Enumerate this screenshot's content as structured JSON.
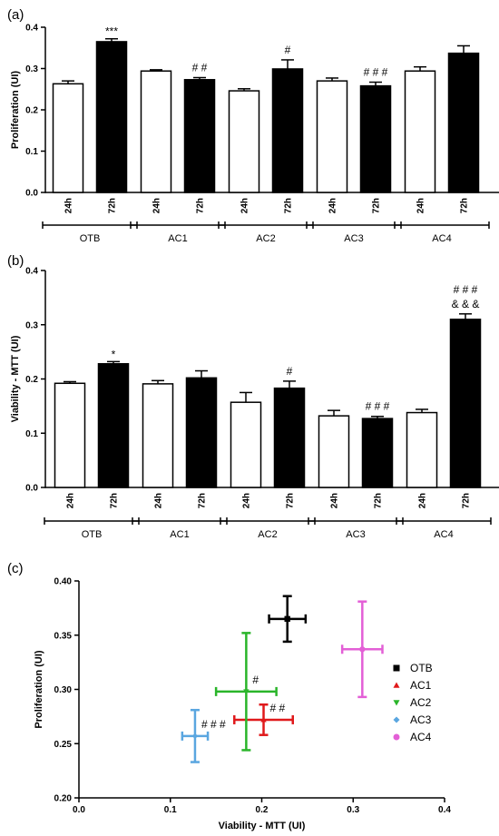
{
  "chart_data": [
    {
      "panel_label": "(a)",
      "type": "bar",
      "ylabel": "Proliferation (UI)",
      "ylim": [
        0,
        0.4
      ],
      "yticks": [
        "0.0",
        "0.1",
        "0.2",
        "0.3",
        "0.4"
      ],
      "time_labels": [
        "24h",
        "72h"
      ],
      "groups": [
        {
          "name": "OTB",
          "values": [
            0.263,
            0.365
          ],
          "errors": [
            0.007,
            0.007
          ],
          "annotations": [
            "",
            "***"
          ]
        },
        {
          "name": "AC1",
          "values": [
            0.294,
            0.273
          ],
          "errors": [
            0.003,
            0.005
          ],
          "annotations": [
            "",
            "##"
          ]
        },
        {
          "name": "AC2",
          "values": [
            0.246,
            0.299
          ],
          "errors": [
            0.005,
            0.022
          ],
          "annotations": [
            "",
            "#"
          ]
        },
        {
          "name": "AC3",
          "values": [
            0.27,
            0.258
          ],
          "errors": [
            0.007,
            0.009
          ],
          "annotations": [
            "",
            "###"
          ]
        },
        {
          "name": "AC4",
          "values": [
            0.294,
            0.337
          ],
          "errors": [
            0.01,
            0.018
          ],
          "annotations": [
            "",
            ""
          ]
        }
      ]
    },
    {
      "panel_label": "(b)",
      "type": "bar",
      "ylabel": "Viability - MTT (UI)",
      "ylim": [
        0,
        0.4
      ],
      "yticks": [
        "0.0",
        "0.1",
        "0.2",
        "0.3",
        "0.4"
      ],
      "time_labels": [
        "24h",
        "72h"
      ],
      "groups": [
        {
          "name": "OTB",
          "values": [
            0.192,
            0.228
          ],
          "errors": [
            0.003,
            0.004
          ],
          "annotations": [
            "",
            "*"
          ]
        },
        {
          "name": "AC1",
          "values": [
            0.191,
            0.202
          ],
          "errors": [
            0.006,
            0.013
          ],
          "annotations": [
            "",
            ""
          ]
        },
        {
          "name": "AC2",
          "values": [
            0.157,
            0.183
          ],
          "errors": [
            0.018,
            0.013
          ],
          "annotations": [
            "",
            "#"
          ]
        },
        {
          "name": "AC3",
          "values": [
            0.132,
            0.127
          ],
          "errors": [
            0.01,
            0.004
          ],
          "annotations": [
            "",
            "###"
          ]
        },
        {
          "name": "AC4",
          "values": [
            0.138,
            0.31
          ],
          "errors": [
            0.006,
            0.01
          ],
          "annotations": [
            "",
            "###\n&&&"
          ]
        }
      ]
    },
    {
      "panel_label": "(c)",
      "type": "scatter",
      "xlabel": "Viability - MTT (UI)",
      "ylabel": "Proliferation (UI)",
      "xlim": [
        0,
        0.4
      ],
      "ylim": [
        0.2,
        0.4
      ],
      "xticks": [
        "0.0",
        "0.1",
        "0.2",
        "0.3",
        "0.4"
      ],
      "yticks": [
        "0.20",
        "0.25",
        "0.30",
        "0.35",
        "0.40"
      ],
      "legend_position": "right",
      "series": [
        {
          "name": "OTB",
          "color": "#000000",
          "marker": "square",
          "x": 0.228,
          "y": 0.365,
          "xerr": 0.02,
          "yerr": 0.021,
          "annotation": ""
        },
        {
          "name": "AC1",
          "color": "#e0191b",
          "marker": "triangle-up",
          "x": 0.202,
          "y": 0.272,
          "xerr": 0.032,
          "yerr": 0.014,
          "annotation": "##"
        },
        {
          "name": "AC2",
          "color": "#2ab52a",
          "marker": "triangle-down",
          "x": 0.183,
          "y": 0.298,
          "xerr": 0.033,
          "yerr": 0.054,
          "annotation": "#"
        },
        {
          "name": "AC3",
          "color": "#5aa6e0",
          "marker": "diamond",
          "x": 0.127,
          "y": 0.257,
          "xerr": 0.014,
          "yerr": 0.024,
          "annotation": "###"
        },
        {
          "name": "AC4",
          "color": "#e35fd6",
          "marker": "circle",
          "x": 0.31,
          "y": 0.337,
          "xerr": 0.022,
          "yerr": 0.044,
          "annotation": ""
        }
      ]
    }
  ]
}
